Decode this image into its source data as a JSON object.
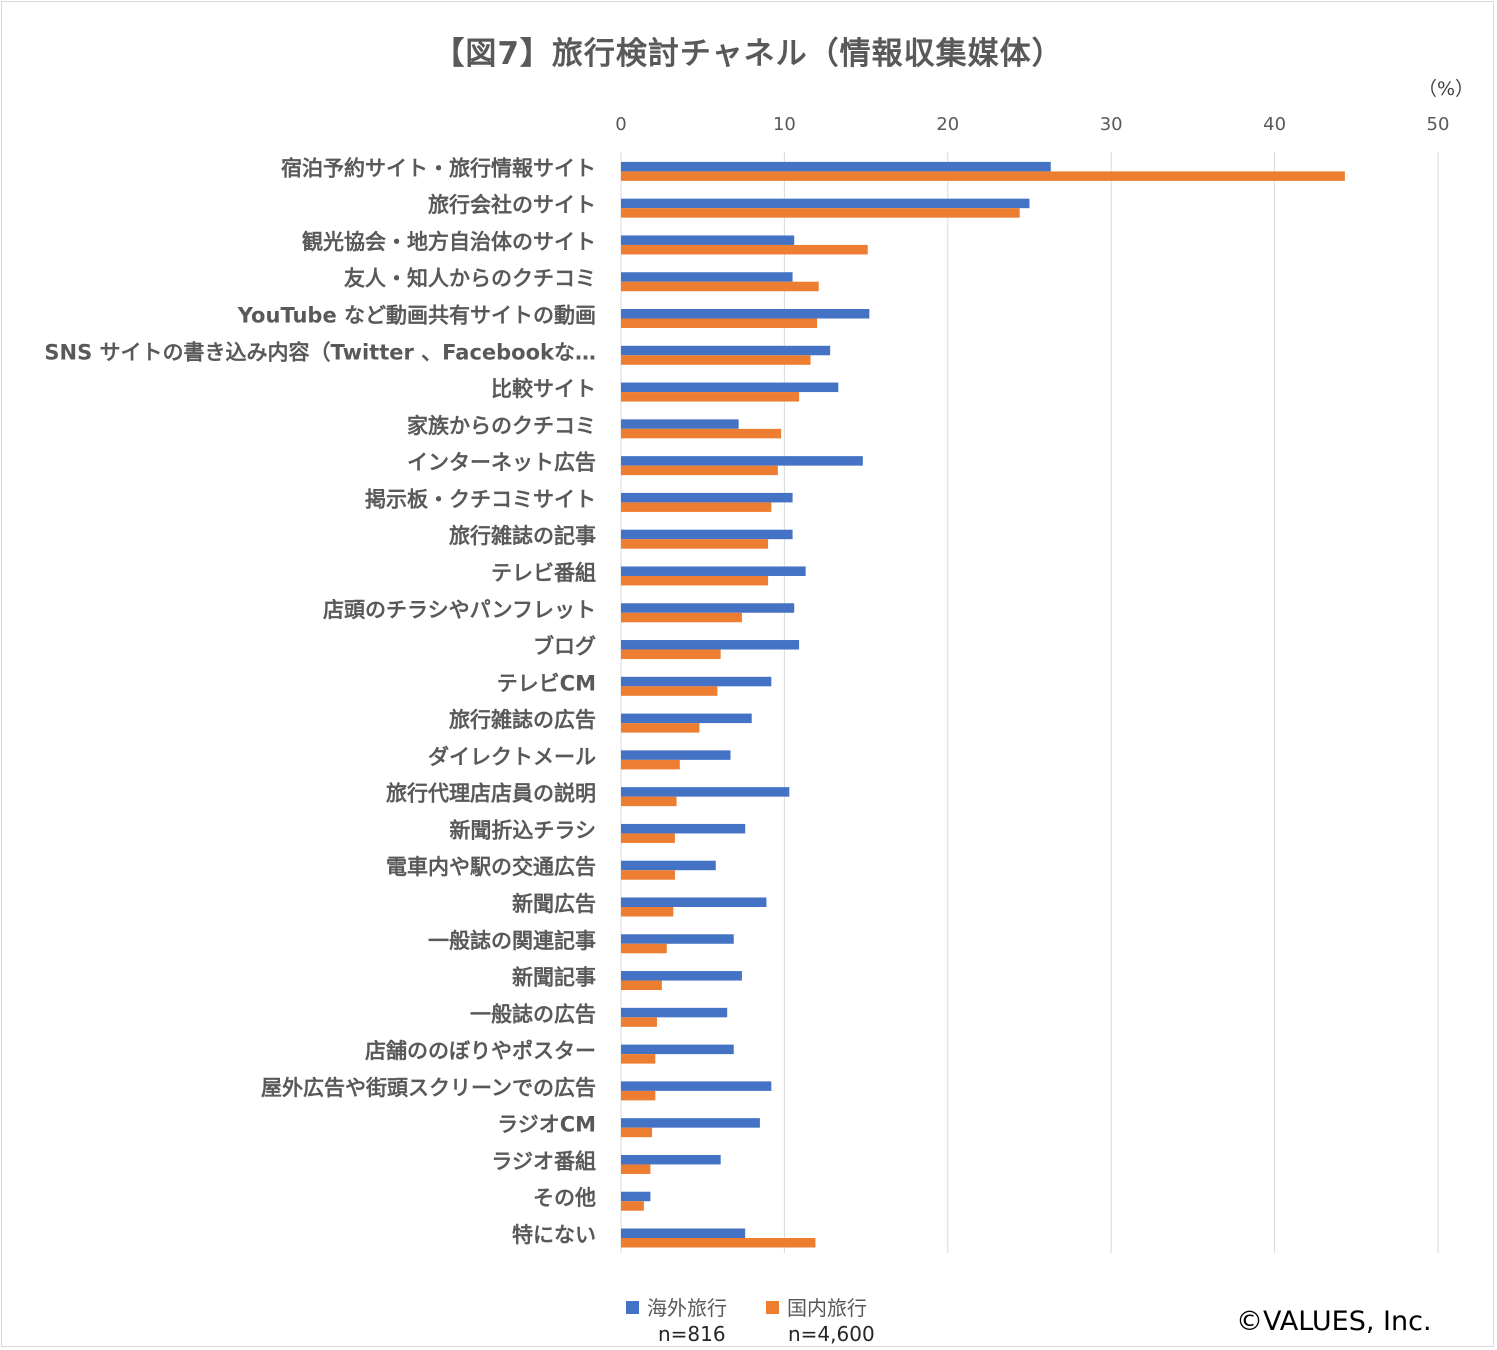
{
  "title": "【図7】旅行検討チャネル（情報収集媒体）",
  "unit_label": "（%）",
  "legend": [
    {
      "label": "海外旅行",
      "n": "n=816",
      "color": "#4472c4"
    },
    {
      "label": "国内旅行",
      "n": "n=4,600",
      "color": "#ed7d31"
    }
  ],
  "copyright": "©VALUES, Inc.",
  "chart_data": {
    "type": "bar",
    "orientation": "horizontal",
    "title": "【図7】旅行検討チャネル（情報収集媒体）",
    "xlim": [
      0,
      50
    ],
    "xticks": [
      0,
      10,
      20,
      30,
      40,
      50
    ],
    "x_axis_position": "top",
    "grid": true,
    "legend_position": "bottom",
    "categories": [
      "宿泊予約サイト・旅行情報サイト",
      "旅行会社のサイト",
      "観光協会・地方自治体のサイト",
      "友人・知人からのクチコミ",
      "YouTube など動画共有サイトの動画",
      "SNS サイトの書き込み内容（Twitter 、Facebookな…",
      "比較サイト",
      "家族からのクチコミ",
      "インターネット広告",
      "掲示板・クチコミサイト",
      "旅行雑誌の記事",
      "テレビ番組",
      "店頭のチラシやパンフレット",
      "ブログ",
      "テレビCM",
      "旅行雑誌の広告",
      "ダイレクトメール",
      "旅行代理店店員の説明",
      "新聞折込チラシ",
      "電車内や駅の交通広告",
      "新聞広告",
      "一般誌の関連記事",
      "新聞記事",
      "一般誌の広告",
      "店舗ののぼりやポスター",
      "屋外広告や街頭スクリーンでの広告",
      "ラジオCM",
      "ラジオ番組",
      "その他",
      "特にない"
    ],
    "series": [
      {
        "name": "海外旅行",
        "color": "#4472c4",
        "values": [
          26.3,
          25.0,
          10.6,
          10.5,
          15.2,
          12.8,
          13.3,
          7.2,
          14.8,
          10.5,
          10.5,
          11.3,
          10.6,
          10.9,
          9.2,
          8.0,
          6.7,
          10.3,
          7.6,
          5.8,
          8.9,
          6.9,
          7.4,
          6.5,
          6.9,
          9.2,
          8.5,
          6.1,
          1.8,
          7.6
        ]
      },
      {
        "name": "国内旅行",
        "color": "#ed7d31",
        "values": [
          44.3,
          24.4,
          15.1,
          12.1,
          12.0,
          11.6,
          10.9,
          9.8,
          9.6,
          9.2,
          9.0,
          9.0,
          7.4,
          6.1,
          5.9,
          4.8,
          3.6,
          3.4,
          3.3,
          3.3,
          3.2,
          2.8,
          2.5,
          2.2,
          2.1,
          2.1,
          1.9,
          1.8,
          1.4,
          11.9
        ]
      }
    ]
  }
}
